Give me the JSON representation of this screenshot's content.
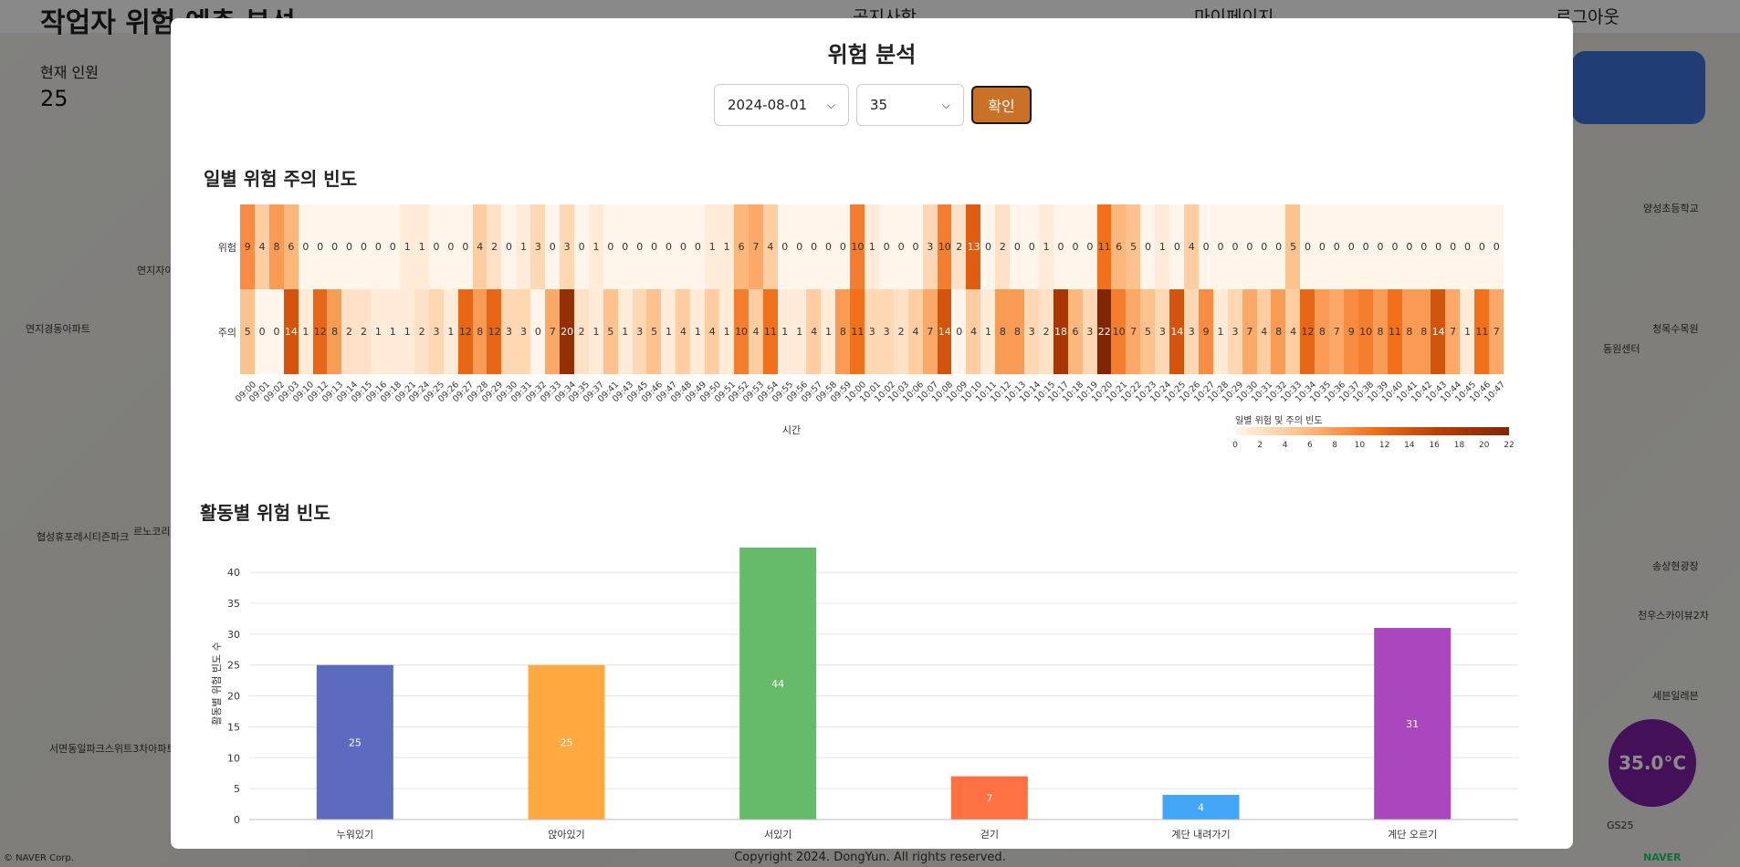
{
  "background": {
    "app_title": "작업자 위험 예측 분석",
    "nav": [
      "공지사항",
      "마이페이지",
      "로그아웃"
    ],
    "current_count_label": "현재 인원",
    "current_count_value": "25",
    "temperature": "35.0°C",
    "footer": "Copyright 2024. DongYun. All rights reserved.",
    "map_credit": "© NAVER Corp.",
    "naver_logo": "NAVER",
    "places": [
      "연지자이1차아파트",
      "연지경동아파트",
      "협성휴포레시티즌파크",
      "서면동일파크스위트3차아파트",
      "양성초등학교",
      "청목수목원",
      "동원센터",
      "송상현광장",
      "천우스카이뷰2차",
      "세븐일레븐",
      "GS25",
      "르노코리아자동차서"
    ]
  },
  "modal": {
    "title": "위험 분석",
    "date_select": "2024-08-01",
    "worker_select": "35",
    "confirm_label": "확인"
  },
  "heatmap": {
    "section_title": "일별 위험 주의 빈도",
    "xlabel": "시간",
    "colorbar_title": "일별 위험 및 주의 빈도",
    "colorbar_ticks": [
      "0",
      "2",
      "4",
      "6",
      "8",
      "10",
      "12",
      "14",
      "16",
      "18",
      "20",
      "22"
    ]
  },
  "barchart": {
    "section_title": "활동별 위험 빈도",
    "ylabel": "활동별 위험 빈도 수"
  },
  "chart_data": [
    {
      "type": "heatmap",
      "title": "일별 위험 주의 빈도",
      "xlabel": "시간",
      "rows": [
        "위험",
        "주의"
      ],
      "columns": [
        "09:00",
        "09:01",
        "09:02",
        "09:03",
        "09:10",
        "09:12",
        "09:13",
        "09:14",
        "09:15",
        "09:16",
        "09:18",
        "09:21",
        "09:24",
        "09:25",
        "09:26",
        "09:27",
        "09:28",
        "09:29",
        "09:30",
        "09:31",
        "09:32",
        "09:33",
        "09:34",
        "09:35",
        "09:37",
        "09:41",
        "09:43",
        "09:45",
        "09:46",
        "09:47",
        "09:48",
        "09:49",
        "09:50",
        "09:51",
        "09:52",
        "09:53",
        "09:54",
        "09:55",
        "09:56",
        "09:57",
        "09:58",
        "09:59",
        "10:00",
        "10:01",
        "10:02",
        "10:03",
        "10:06",
        "10:07",
        "10:08",
        "10:09",
        "10:10",
        "10:11",
        "10:12",
        "10:13",
        "10:14",
        "10:15",
        "10:17",
        "10:18",
        "10:19",
        "10:20",
        "10:21",
        "10:22",
        "10:23",
        "10:24",
        "10:25",
        "10:26",
        "10:27",
        "10:28",
        "10:29",
        "10:30",
        "10:31",
        "10:32",
        "10:33",
        "10:34",
        "10:35",
        "10:36",
        "10:37",
        "10:38",
        "10:39",
        "10:40",
        "10:41",
        "10:42",
        "10:43",
        "10:44",
        "10:45",
        "10:46",
        "10:47"
      ],
      "values": [
        [
          9,
          4,
          8,
          6,
          0,
          0,
          0,
          0,
          0,
          0,
          0,
          1,
          1,
          0,
          0,
          0,
          4,
          2,
          0,
          1,
          3,
          0,
          3,
          0,
          1,
          0,
          0,
          0,
          0,
          0,
          0,
          0,
          1,
          1,
          6,
          7,
          4,
          0,
          0,
          0,
          0,
          0,
          10,
          1,
          0,
          0,
          0,
          3,
          10,
          2,
          13,
          0,
          2,
          0,
          0,
          1,
          0,
          0,
          0,
          11,
          6,
          5,
          0,
          1,
          0,
          4,
          0,
          0,
          0,
          0,
          0,
          0,
          5,
          0,
          0,
          0,
          0,
          0,
          0,
          0,
          0,
          0,
          0,
          0,
          0,
          0,
          0
        ],
        [
          5,
          0,
          0,
          14,
          1,
          12,
          8,
          2,
          2,
          1,
          1,
          1,
          2,
          3,
          1,
          12,
          8,
          12,
          3,
          3,
          0,
          7,
          20,
          2,
          1,
          5,
          1,
          3,
          5,
          1,
          4,
          1,
          4,
          1,
          10,
          4,
          11,
          1,
          1,
          4,
          1,
          8,
          11,
          3,
          3,
          2,
          4,
          7,
          14,
          0,
          4,
          1,
          8,
          8,
          3,
          2,
          18,
          6,
          3,
          22,
          10,
          7,
          5,
          3,
          14,
          3,
          9,
          1,
          3,
          7,
          4,
          8,
          4,
          12,
          8,
          7,
          9,
          10,
          8,
          11,
          8,
          8,
          14,
          7,
          1,
          11,
          7
        ]
      ],
      "vmin": 0,
      "vmax": 22,
      "colormap": [
        "#fff5eb",
        "#fdbe85",
        "#f3701b",
        "#b83c02",
        "#7f2704"
      ]
    },
    {
      "type": "bar",
      "title": "활동별 위험 빈도",
      "xlabel": "",
      "ylabel": "활동별 위험 빈도 수",
      "categories": [
        "누워있기",
        "앉아있기",
        "서있기",
        "걷기",
        "계단 내려가기",
        "계단 오르기"
      ],
      "values": [
        25,
        25,
        44,
        7,
        4,
        31
      ],
      "colors": [
        "#5c6bc0",
        "#ffa940",
        "#66bb6a",
        "#ff7043",
        "#42a5f5",
        "#ab47bc"
      ],
      "ylim": [
        0,
        44
      ],
      "yticks": [
        0,
        5,
        10,
        15,
        20,
        25,
        30,
        35,
        40
      ],
      "grid": true
    }
  ]
}
